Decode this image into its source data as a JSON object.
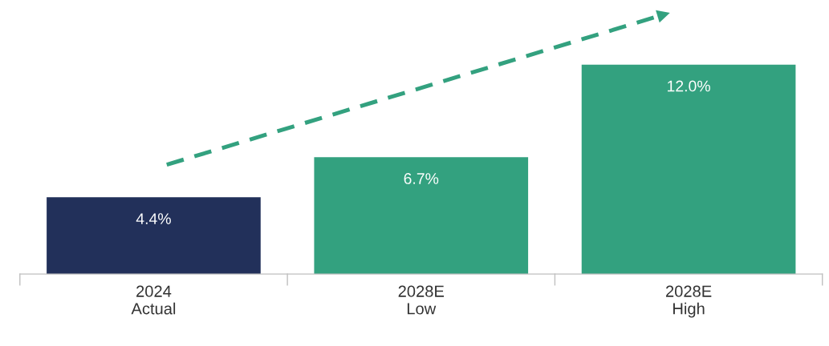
{
  "chart_data": {
    "type": "bar",
    "categories": [
      "2024\nActual",
      "2028E\nLow",
      "2028E\nHigh"
    ],
    "values": [
      4.4,
      6.7,
      12.0
    ],
    "colors": [
      "#22305a",
      "#33a17f",
      "#33a17f"
    ],
    "value_labels": [
      "4.4%",
      "6.7%",
      "12.0%"
    ],
    "grid": false,
    "legend": false
  }
}
